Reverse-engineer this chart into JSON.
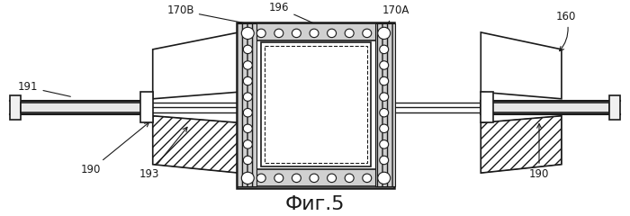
{
  "fig_label": "Фиг.5",
  "fig_label_fontsize": 16,
  "bg_color": "#ffffff",
  "line_color": "#1a1a1a",
  "lw": 1.2
}
